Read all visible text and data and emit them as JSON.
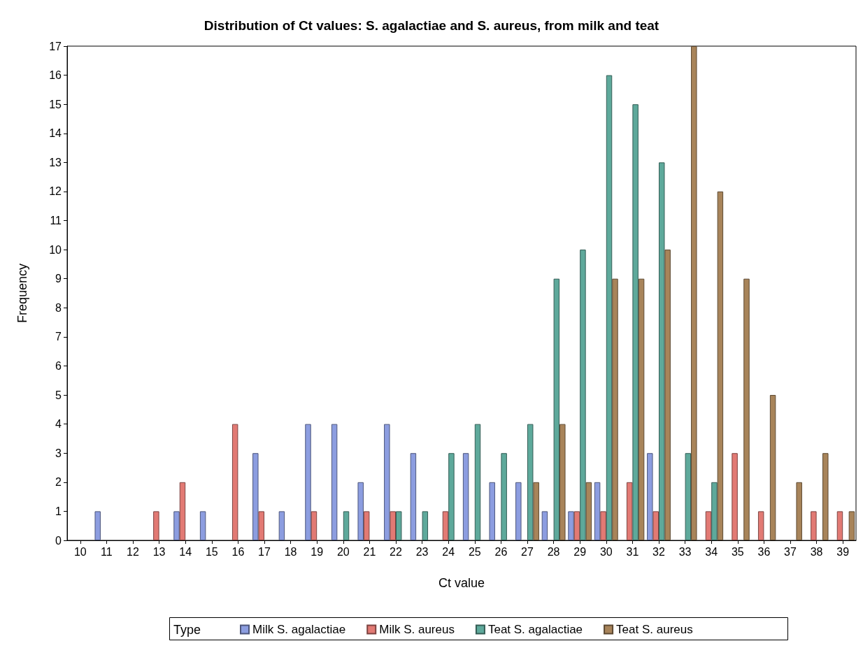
{
  "chart_data": {
    "type": "bar",
    "title": "Distribution of Ct values: S. agalactiae and S. aureus, from milk and teat",
    "xlabel": "Ct value",
    "ylabel": "Frequency",
    "legend_title": "Type",
    "legend": "bottom",
    "grid": false,
    "categories": [
      "10",
      "11",
      "12",
      "13",
      "14",
      "15",
      "16",
      "17",
      "18",
      "19",
      "20",
      "21",
      "22",
      "23",
      "24",
      "25",
      "26",
      "27",
      "28",
      "29",
      "30",
      "31",
      "32",
      "33",
      "34",
      "35",
      "36",
      "37",
      "38",
      "39"
    ],
    "ylim": [
      0,
      17
    ],
    "yticks": [
      0,
      1,
      2,
      3,
      4,
      5,
      6,
      7,
      8,
      9,
      10,
      11,
      12,
      13,
      14,
      15,
      16,
      17
    ],
    "series": [
      {
        "name": "Milk S. agalactiae",
        "color": "#8c9de0",
        "values": [
          null,
          1,
          null,
          null,
          1,
          1,
          null,
          3,
          1,
          4,
          4,
          2,
          4,
          3,
          null,
          3,
          2,
          2,
          1,
          1,
          2,
          null,
          3,
          null,
          null,
          null,
          null,
          null,
          null,
          null
        ]
      },
      {
        "name": "Milk S. aureus",
        "color": "#e27a74",
        "values": [
          null,
          null,
          null,
          1,
          2,
          null,
          4,
          1,
          null,
          1,
          null,
          1,
          1,
          null,
          1,
          null,
          null,
          null,
          null,
          1,
          1,
          2,
          1,
          null,
          1,
          3,
          1,
          null,
          1,
          1
        ]
      },
      {
        "name": "Teat S. agalactiae",
        "color": "#5ea99b",
        "values": [
          null,
          null,
          null,
          null,
          null,
          null,
          null,
          null,
          null,
          null,
          1,
          null,
          1,
          1,
          3,
          4,
          3,
          4,
          9,
          10,
          16,
          15,
          13,
          3,
          2,
          null,
          null,
          null,
          null,
          null
        ]
      },
      {
        "name": "Teat S. aureus",
        "color": "#a8845a",
        "values": [
          null,
          null,
          null,
          null,
          null,
          null,
          null,
          null,
          null,
          null,
          null,
          null,
          null,
          null,
          null,
          null,
          null,
          2,
          4,
          2,
          9,
          9,
          10,
          17,
          12,
          9,
          5,
          2,
          3,
          1
        ]
      }
    ]
  }
}
